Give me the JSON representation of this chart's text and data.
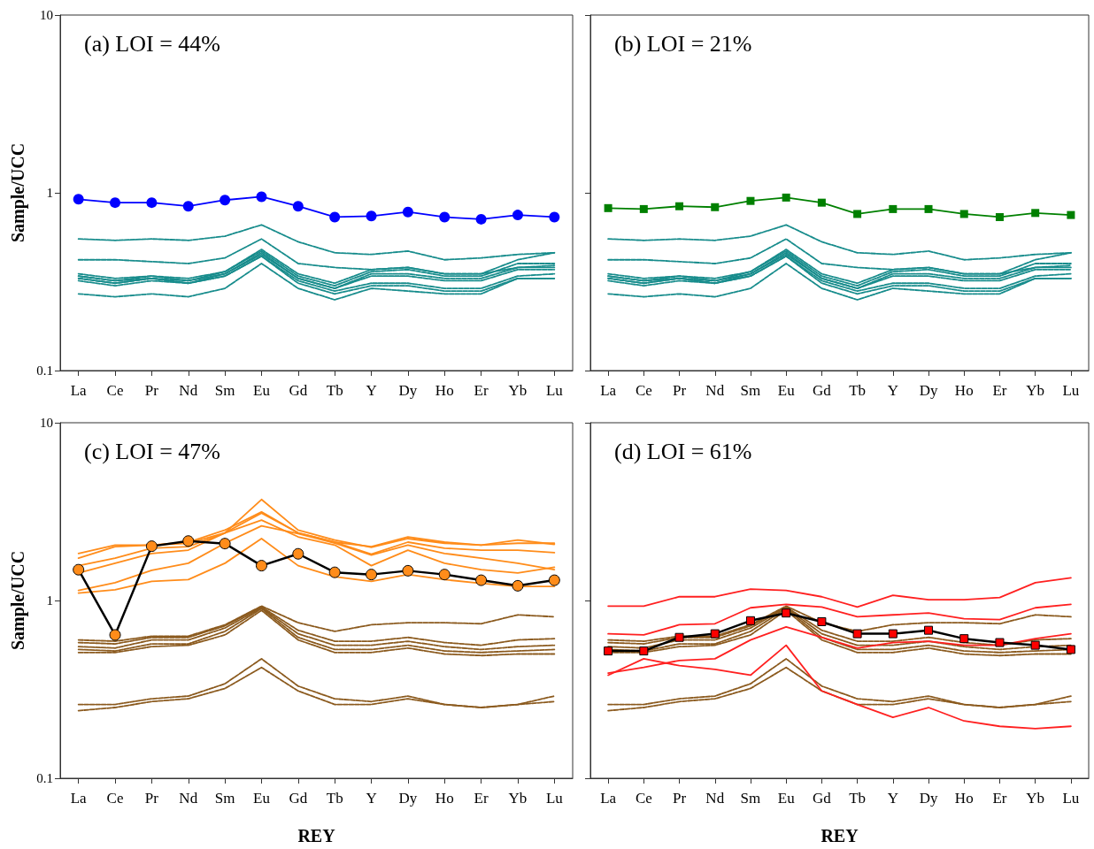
{
  "chart_data": [
    {
      "type": "line",
      "title": "(a) LOI = 44%",
      "ylabel": "Sample/UCC",
      "categories": [
        "La",
        "Ce",
        "Pr",
        "Nd",
        "Sm",
        "Eu",
        "Gd",
        "Tb",
        "Y",
        "Dy",
        "Ho",
        "Er",
        "Yb",
        "Lu"
      ],
      "log": "y",
      "ylim": [
        0.1,
        10
      ],
      "yticks": [
        0.1,
        1,
        10
      ],
      "series": [
        {
          "color": "#178c8c",
          "line_style": "dashed",
          "marker": "none",
          "values": [
            0.55,
            0.54,
            0.55,
            0.54,
            0.57,
            0.66,
            0.53,
            0.46,
            0.45,
            0.47,
            0.42,
            0.43,
            0.45,
            0.46
          ]
        },
        {
          "color": "#178c8c",
          "line_style": "dashed",
          "marker": "none",
          "values": [
            0.42,
            0.42,
            0.41,
            0.4,
            0.43,
            0.55,
            0.4,
            0.38,
            0.37,
            0.38,
            0.35,
            0.35,
            0.38,
            0.39
          ]
        },
        {
          "color": "#178c8c",
          "line_style": "dashed",
          "marker": "none",
          "values": [
            0.35,
            0.33,
            0.34,
            0.33,
            0.36,
            0.48,
            0.35,
            0.31,
            0.37,
            0.38,
            0.35,
            0.35,
            0.42,
            0.46
          ]
        },
        {
          "color": "#178c8c",
          "line_style": "dashed",
          "marker": "none",
          "values": [
            0.34,
            0.32,
            0.34,
            0.32,
            0.36,
            0.47,
            0.34,
            0.3,
            0.36,
            0.37,
            0.34,
            0.34,
            0.4,
            0.4
          ]
        },
        {
          "color": "#178c8c",
          "line_style": "dashed",
          "marker": "none",
          "values": [
            0.34,
            0.32,
            0.33,
            0.32,
            0.35,
            0.46,
            0.33,
            0.29,
            0.35,
            0.35,
            0.33,
            0.33,
            0.38,
            0.38
          ]
        },
        {
          "color": "#178c8c",
          "line_style": "dashed",
          "marker": "none",
          "values": [
            0.33,
            0.31,
            0.33,
            0.31,
            0.35,
            0.45,
            0.33,
            0.29,
            0.34,
            0.34,
            0.32,
            0.32,
            0.37,
            0.37
          ]
        },
        {
          "color": "#178c8c",
          "line_style": "dashed",
          "marker": "none",
          "values": [
            0.33,
            0.31,
            0.33,
            0.31,
            0.34,
            0.44,
            0.32,
            0.28,
            0.31,
            0.31,
            0.29,
            0.29,
            0.34,
            0.35
          ]
        },
        {
          "color": "#178c8c",
          "line_style": "dashed",
          "marker": "none",
          "values": [
            0.32,
            0.3,
            0.32,
            0.31,
            0.34,
            0.44,
            0.31,
            0.27,
            0.3,
            0.3,
            0.28,
            0.28,
            0.33,
            0.33
          ]
        },
        {
          "color": "#178c8c",
          "line_style": "dashed",
          "marker": "none",
          "values": [
            0.27,
            0.26,
            0.27,
            0.26,
            0.29,
            0.4,
            0.29,
            0.25,
            0.29,
            0.28,
            0.27,
            0.27,
            0.33,
            0.33
          ]
        },
        {
          "color": "#0000ff",
          "line_style": "solid",
          "marker": "circle",
          "values": [
            0.92,
            0.88,
            0.88,
            0.84,
            0.91,
            0.95,
            0.84,
            0.73,
            0.74,
            0.78,
            0.73,
            0.71,
            0.75,
            0.73
          ]
        }
      ]
    },
    {
      "type": "line",
      "title": "(b) LOI = 21%",
      "categories": [
        "La",
        "Ce",
        "Pr",
        "Nd",
        "Sm",
        "Eu",
        "Gd",
        "Tb",
        "Y",
        "Dy",
        "Ho",
        "Er",
        "Yb",
        "Lu"
      ],
      "log": "y",
      "ylim": [
        0.1,
        10
      ],
      "yticks": [
        0.1,
        1,
        10
      ],
      "tick_labels": "x",
      "series": [
        {
          "color": "#178c8c",
          "line_style": "dashed",
          "marker": "none",
          "values": [
            0.55,
            0.54,
            0.55,
            0.54,
            0.57,
            0.66,
            0.53,
            0.46,
            0.45,
            0.47,
            0.42,
            0.43,
            0.45,
            0.46
          ]
        },
        {
          "color": "#178c8c",
          "line_style": "dashed",
          "marker": "none",
          "values": [
            0.42,
            0.42,
            0.41,
            0.4,
            0.43,
            0.55,
            0.4,
            0.38,
            0.37,
            0.38,
            0.35,
            0.35,
            0.38,
            0.39
          ]
        },
        {
          "color": "#178c8c",
          "line_style": "dashed",
          "marker": "none",
          "values": [
            0.35,
            0.33,
            0.34,
            0.33,
            0.36,
            0.48,
            0.35,
            0.31,
            0.37,
            0.38,
            0.35,
            0.35,
            0.42,
            0.46
          ]
        },
        {
          "color": "#178c8c",
          "line_style": "dashed",
          "marker": "none",
          "values": [
            0.34,
            0.32,
            0.34,
            0.32,
            0.36,
            0.47,
            0.34,
            0.3,
            0.36,
            0.37,
            0.34,
            0.34,
            0.4,
            0.4
          ]
        },
        {
          "color": "#178c8c",
          "line_style": "dashed",
          "marker": "none",
          "values": [
            0.34,
            0.32,
            0.33,
            0.32,
            0.35,
            0.46,
            0.33,
            0.29,
            0.35,
            0.35,
            0.33,
            0.33,
            0.38,
            0.38
          ]
        },
        {
          "color": "#178c8c",
          "line_style": "dashed",
          "marker": "none",
          "values": [
            0.33,
            0.31,
            0.33,
            0.31,
            0.35,
            0.45,
            0.33,
            0.29,
            0.34,
            0.34,
            0.32,
            0.32,
            0.37,
            0.37
          ]
        },
        {
          "color": "#178c8c",
          "line_style": "dashed",
          "marker": "none",
          "values": [
            0.33,
            0.31,
            0.33,
            0.31,
            0.34,
            0.44,
            0.32,
            0.28,
            0.31,
            0.31,
            0.29,
            0.29,
            0.34,
            0.35
          ]
        },
        {
          "color": "#178c8c",
          "line_style": "dashed",
          "marker": "none",
          "values": [
            0.32,
            0.3,
            0.32,
            0.31,
            0.34,
            0.44,
            0.31,
            0.27,
            0.3,
            0.3,
            0.28,
            0.28,
            0.33,
            0.33
          ]
        },
        {
          "color": "#178c8c",
          "line_style": "dashed",
          "marker": "none",
          "values": [
            0.27,
            0.26,
            0.27,
            0.26,
            0.29,
            0.4,
            0.29,
            0.25,
            0.29,
            0.28,
            0.27,
            0.27,
            0.33,
            0.33
          ]
        },
        {
          "color": "#008000",
          "line_style": "solid",
          "marker": "square",
          "values": [
            0.82,
            0.81,
            0.84,
            0.83,
            0.9,
            0.94,
            0.88,
            0.76,
            0.81,
            0.81,
            0.76,
            0.73,
            0.77,
            0.75
          ]
        }
      ]
    },
    {
      "type": "line",
      "title": "(c) LOI = 47%",
      "xlabel": "REY",
      "ylabel": "Sample/UCC",
      "categories": [
        "La",
        "Ce",
        "Pr",
        "Nd",
        "Sm",
        "Eu",
        "Gd",
        "Tb",
        "Y",
        "Dy",
        "Ho",
        "Er",
        "Yb",
        "Lu"
      ],
      "log": "y",
      "ylim": [
        0.1,
        10
      ],
      "yticks": [
        0.1,
        1,
        10
      ],
      "series": [
        {
          "color": "#8b5a1e",
          "line_style": "dashed",
          "marker": "none",
          "values": [
            0.6,
            0.59,
            0.63,
            0.63,
            0.73,
            0.93,
            0.75,
            0.67,
            0.73,
            0.75,
            0.75,
            0.74,
            0.83,
            0.81
          ]
        },
        {
          "color": "#8b5a1e",
          "line_style": "dashed",
          "marker": "none",
          "values": [
            0.58,
            0.57,
            0.62,
            0.62,
            0.72,
            0.92,
            0.68,
            0.59,
            0.59,
            0.62,
            0.58,
            0.56,
            0.6,
            0.61
          ]
        },
        {
          "color": "#8b5a1e",
          "line_style": "dashed",
          "marker": "none",
          "values": [
            0.55,
            0.54,
            0.6,
            0.6,
            0.7,
            0.91,
            0.65,
            0.56,
            0.56,
            0.59,
            0.55,
            0.53,
            0.55,
            0.56
          ]
        },
        {
          "color": "#8b5a1e",
          "line_style": "dashed",
          "marker": "none",
          "values": [
            0.53,
            0.52,
            0.57,
            0.57,
            0.67,
            0.9,
            0.62,
            0.53,
            0.53,
            0.56,
            0.52,
            0.51,
            0.52,
            0.53
          ]
        },
        {
          "color": "#8b5a1e",
          "line_style": "dashed",
          "marker": "none",
          "values": [
            0.51,
            0.51,
            0.55,
            0.56,
            0.64,
            0.88,
            0.6,
            0.51,
            0.51,
            0.54,
            0.5,
            0.49,
            0.5,
            0.5
          ]
        },
        {
          "color": "#8b5a1e",
          "line_style": "dashed",
          "marker": "none",
          "values": [
            0.26,
            0.26,
            0.28,
            0.29,
            0.34,
            0.47,
            0.33,
            0.28,
            0.27,
            0.29,
            0.26,
            0.25,
            0.26,
            0.29
          ]
        },
        {
          "color": "#8b5a1e",
          "line_style": "dashed",
          "marker": "none",
          "values": [
            0.24,
            0.25,
            0.27,
            0.28,
            0.32,
            0.42,
            0.31,
            0.26,
            0.26,
            0.28,
            0.26,
            0.25,
            0.26,
            0.27
          ]
        },
        {
          "color": "#ff8c1a",
          "line_style": "solid",
          "marker": "none",
          "values": [
            1.84,
            2.05,
            2.05,
            2.13,
            2.49,
            3.15,
            2.4,
            2.13,
            2.01,
            2.28,
            2.13,
            2.05,
            2.19,
            2.07
          ]
        },
        {
          "color": "#ff8c1a",
          "line_style": "solid",
          "marker": "none",
          "values": [
            1.73,
            2.01,
            2.05,
            2.1,
            2.4,
            3.7,
            2.49,
            2.19,
            1.99,
            2.23,
            2.1,
            2.05,
            2.1,
            2.1
          ]
        },
        {
          "color": "#ff8c1a",
          "line_style": "solid",
          "marker": "none",
          "values": [
            1.57,
            1.73,
            1.97,
            2.01,
            2.4,
            3.1,
            2.4,
            2.13,
            1.82,
            2.13,
            1.97,
            1.92,
            1.92,
            1.86
          ]
        },
        {
          "color": "#ff8c1a",
          "line_style": "solid",
          "marker": "none",
          "values": [
            1.43,
            1.62,
            1.84,
            1.92,
            2.4,
            2.83,
            2.28,
            2.05,
            1.57,
            1.92,
            1.62,
            1.49,
            1.43,
            1.54
          ]
        },
        {
          "color": "#ff8c1a",
          "line_style": "solid",
          "marker": "none",
          "values": [
            1.14,
            1.26,
            1.48,
            1.62,
            2.1,
            2.63,
            2.38,
            2.1,
            1.8,
            2.05,
            1.84,
            1.73,
            1.62,
            1.49
          ]
        },
        {
          "color": "#ff8c1a",
          "line_style": "solid",
          "marker": "none",
          "values": [
            1.1,
            1.15,
            1.28,
            1.31,
            1.62,
            2.23,
            1.57,
            1.36,
            1.28,
            1.4,
            1.31,
            1.25,
            1.2,
            1.2
          ]
        },
        {
          "color": "#000000",
          "line_style": "solid",
          "marker": "circle",
          "colors": [
            "#ff8c1a",
            "#ff8c1a",
            "#ff8c1a",
            "#ff8c1a",
            "#ff8c1a",
            "#ff8c1a",
            "#ff8c1a",
            "#ff8c1a",
            "#ff8c1a",
            "#ff8c1a",
            "#ff8c1a",
            "#ff8c1a",
            "#ff8c1a",
            "#ff8c1a"
          ],
          "values": [
            1.49,
            0.64,
            2.02,
            2.16,
            2.09,
            1.57,
            1.83,
            1.44,
            1.4,
            1.47,
            1.4,
            1.3,
            1.21,
            1.3
          ]
        }
      ]
    },
    {
      "type": "line",
      "title": "(d) LOI = 61%",
      "xlabel": "REY",
      "categories": [
        "La",
        "Ce",
        "Pr",
        "Nd",
        "Sm",
        "Eu",
        "Gd",
        "Tb",
        "Y",
        "Dy",
        "Ho",
        "Er",
        "Yb",
        "Lu"
      ],
      "log": "y",
      "ylim": [
        0.1,
        10
      ],
      "yticks": [
        0.1,
        1,
        10
      ],
      "tick_labels": "x",
      "series": [
        {
          "color": "#8b5a1e",
          "line_style": "dashed",
          "marker": "none",
          "values": [
            0.6,
            0.59,
            0.63,
            0.63,
            0.73,
            0.93,
            0.75,
            0.67,
            0.73,
            0.75,
            0.75,
            0.74,
            0.83,
            0.81
          ]
        },
        {
          "color": "#8b5a1e",
          "line_style": "dashed",
          "marker": "none",
          "values": [
            0.58,
            0.57,
            0.62,
            0.62,
            0.72,
            0.92,
            0.68,
            0.59,
            0.59,
            0.62,
            0.58,
            0.56,
            0.6,
            0.61
          ]
        },
        {
          "color": "#8b5a1e",
          "line_style": "dashed",
          "marker": "none",
          "values": [
            0.55,
            0.54,
            0.6,
            0.6,
            0.7,
            0.91,
            0.65,
            0.56,
            0.56,
            0.59,
            0.55,
            0.53,
            0.55,
            0.56
          ]
        },
        {
          "color": "#8b5a1e",
          "line_style": "dashed",
          "marker": "none",
          "values": [
            0.53,
            0.52,
            0.57,
            0.57,
            0.67,
            0.9,
            0.62,
            0.53,
            0.53,
            0.56,
            0.52,
            0.51,
            0.52,
            0.53
          ]
        },
        {
          "color": "#8b5a1e",
          "line_style": "dashed",
          "marker": "none",
          "values": [
            0.51,
            0.51,
            0.55,
            0.56,
            0.64,
            0.88,
            0.6,
            0.51,
            0.51,
            0.54,
            0.5,
            0.49,
            0.5,
            0.5
          ]
        },
        {
          "color": "#8b5a1e",
          "line_style": "dashed",
          "marker": "none",
          "values": [
            0.26,
            0.26,
            0.28,
            0.29,
            0.34,
            0.47,
            0.33,
            0.28,
            0.27,
            0.29,
            0.26,
            0.25,
            0.26,
            0.29
          ]
        },
        {
          "color": "#8b5a1e",
          "line_style": "dashed",
          "marker": "none",
          "values": [
            0.24,
            0.25,
            0.27,
            0.28,
            0.32,
            0.42,
            0.31,
            0.26,
            0.26,
            0.28,
            0.26,
            0.25,
            0.26,
            0.27
          ]
        },
        {
          "color": "#ff2020",
          "line_style": "solid",
          "marker": "none",
          "values": [
            0.93,
            0.93,
            1.05,
            1.05,
            1.16,
            1.14,
            1.05,
            0.92,
            1.07,
            1.01,
            1.01,
            1.04,
            1.26,
            1.34
          ]
        },
        {
          "color": "#ff2020",
          "line_style": "solid",
          "marker": "none",
          "values": [
            0.65,
            0.64,
            0.73,
            0.74,
            0.91,
            0.95,
            0.92,
            0.81,
            0.83,
            0.85,
            0.79,
            0.78,
            0.91,
            0.95
          ]
        },
        {
          "color": "#ff2020",
          "line_style": "solid",
          "marker": "none",
          "values": [
            0.39,
            0.42,
            0.46,
            0.47,
            0.6,
            0.71,
            0.62,
            0.54,
            0.58,
            0.59,
            0.56,
            0.56,
            0.61,
            0.65
          ]
        },
        {
          "color": "#ff2020",
          "line_style": "solid",
          "marker": "none",
          "values": [
            0.38,
            0.47,
            0.43,
            0.41,
            0.38,
            0.56,
            0.31,
            0.26,
            0.22,
            0.25,
            0.21,
            0.196,
            0.19,
            0.196
          ]
        },
        {
          "color": "#000000",
          "line_style": "solid",
          "marker": "square",
          "colors": [
            "#ff0000",
            "#ff0000",
            "#ff0000",
            "#ff0000",
            "#ff0000",
            "#ff0000",
            "#ff0000",
            "#ff0000",
            "#ff0000",
            "#ff0000",
            "#ff0000",
            "#ff0000",
            "#ff0000",
            "#ff0000"
          ],
          "values": [
            0.52,
            0.52,
            0.62,
            0.65,
            0.77,
            0.85,
            0.76,
            0.65,
            0.65,
            0.68,
            0.61,
            0.58,
            0.56,
            0.53
          ]
        }
      ]
    }
  ]
}
